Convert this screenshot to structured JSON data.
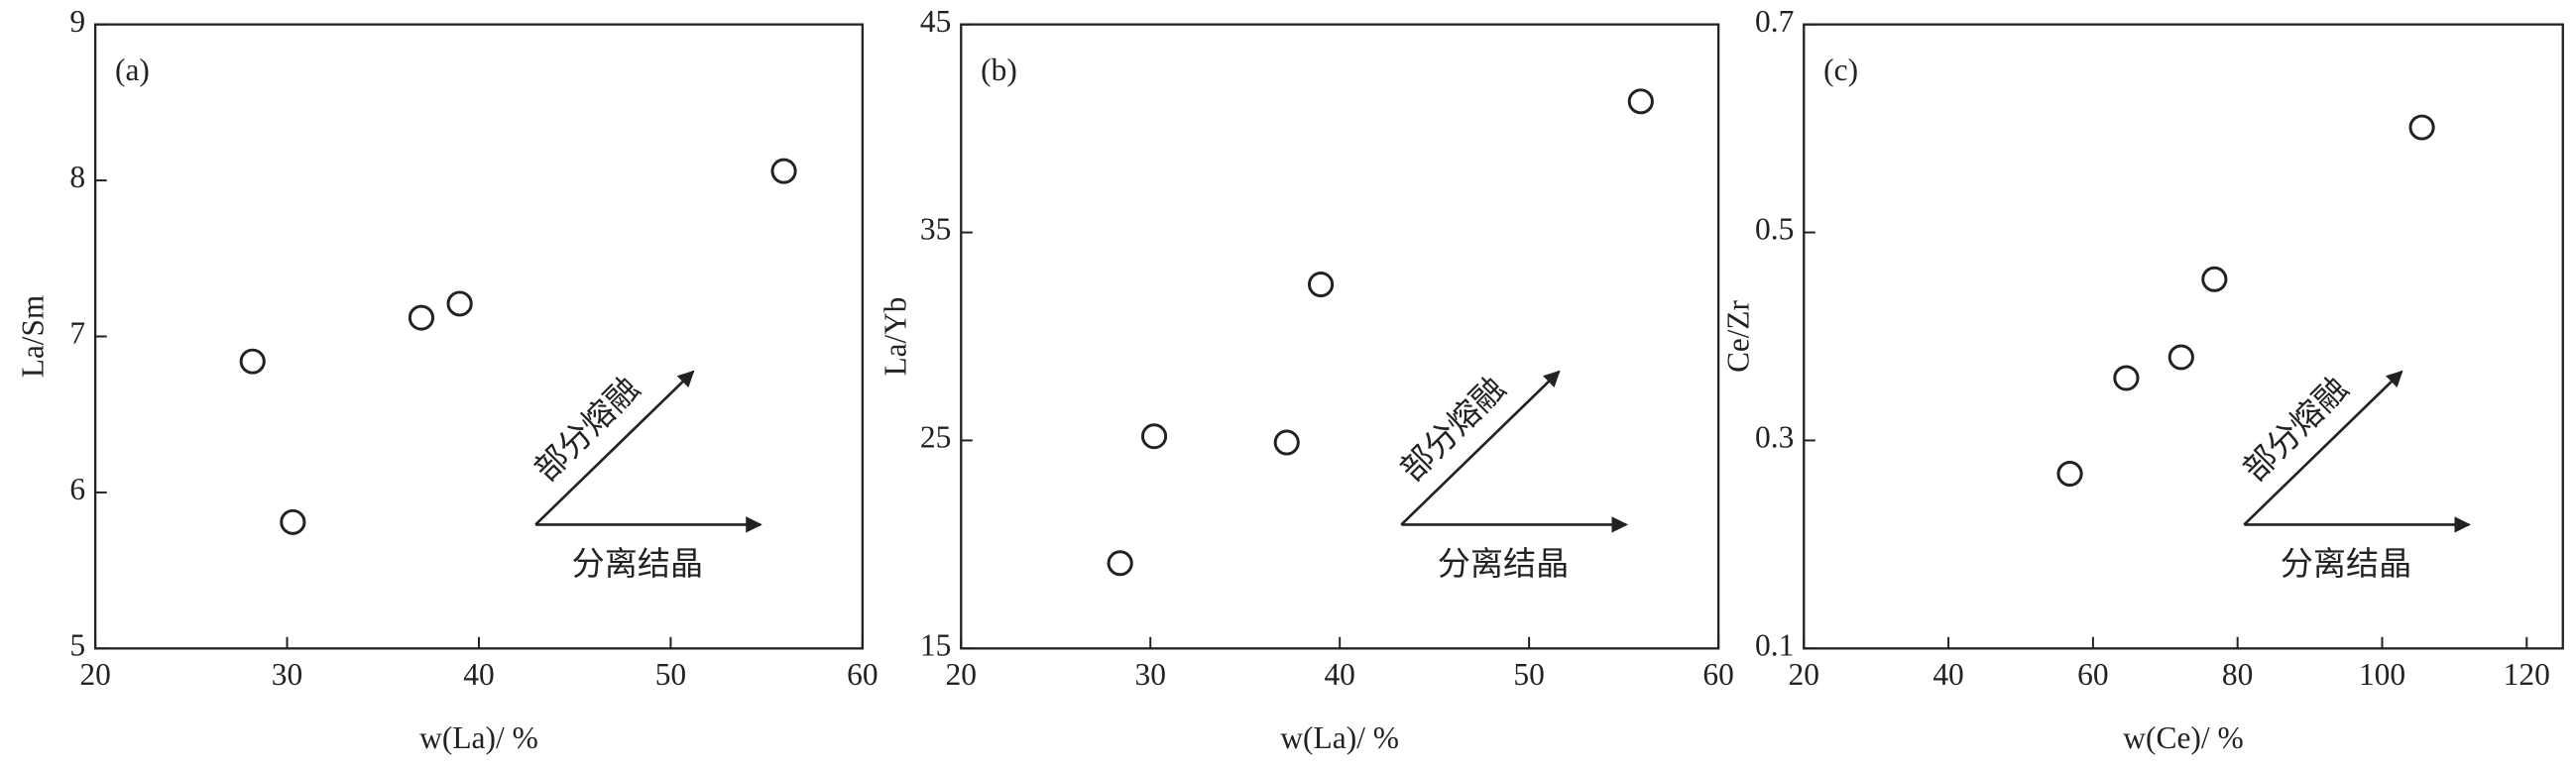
{
  "chart_data": [
    {
      "type": "scatter",
      "panel_label": "(a)",
      "xlabel": "w(La)/ %",
      "ylabel": "La/Sm",
      "x": [
        28.2,
        30.3,
        37.0,
        39.0,
        55.9
      ],
      "y": [
        6.84,
        5.81,
        7.12,
        7.21,
        8.06
      ],
      "xlim": [
        20,
        60
      ],
      "ylim": [
        5,
        9
      ],
      "xticks": [
        20,
        30,
        40,
        50,
        60
      ],
      "yticks": [
        5,
        6,
        7,
        8,
        9
      ],
      "color": "#222222",
      "annotations": [
        "部分熔融",
        "分离结晶"
      ]
    },
    {
      "type": "scatter",
      "panel_label": "(b)",
      "xlabel": "w(La)/ %",
      "ylabel": "La/Yb",
      "x": [
        28.4,
        30.2,
        37.2,
        39.0,
        55.9
      ],
      "y": [
        19.1,
        25.2,
        24.9,
        32.5,
        41.3
      ],
      "xlim": [
        20,
        60
      ],
      "ylim": [
        15,
        45
      ],
      "xticks": [
        20,
        30,
        40,
        50,
        60
      ],
      "yticks": [
        15,
        25,
        35,
        45
      ],
      "color": "#222222",
      "annotations": [
        "部分熔融",
        "分离结晶"
      ]
    },
    {
      "type": "scatter",
      "panel_label": "(c)",
      "xlabel": "w(Ce)/ %",
      "ylabel": "Ce/Zr",
      "x": [
        56.8,
        64.6,
        72.2,
        76.8,
        105.5
      ],
      "y": [
        0.268,
        0.36,
        0.38,
        0.455,
        0.601
      ],
      "xlim": [
        20,
        125
      ],
      "ylim": [
        0.1,
        0.7
      ],
      "xticks": [
        20,
        40,
        60,
        80,
        100,
        120
      ],
      "yticks": [
        0.1,
        0.3,
        0.5,
        0.7
      ],
      "color": "#222222",
      "annotations": [
        "部分熔融",
        "分离结晶"
      ]
    }
  ]
}
